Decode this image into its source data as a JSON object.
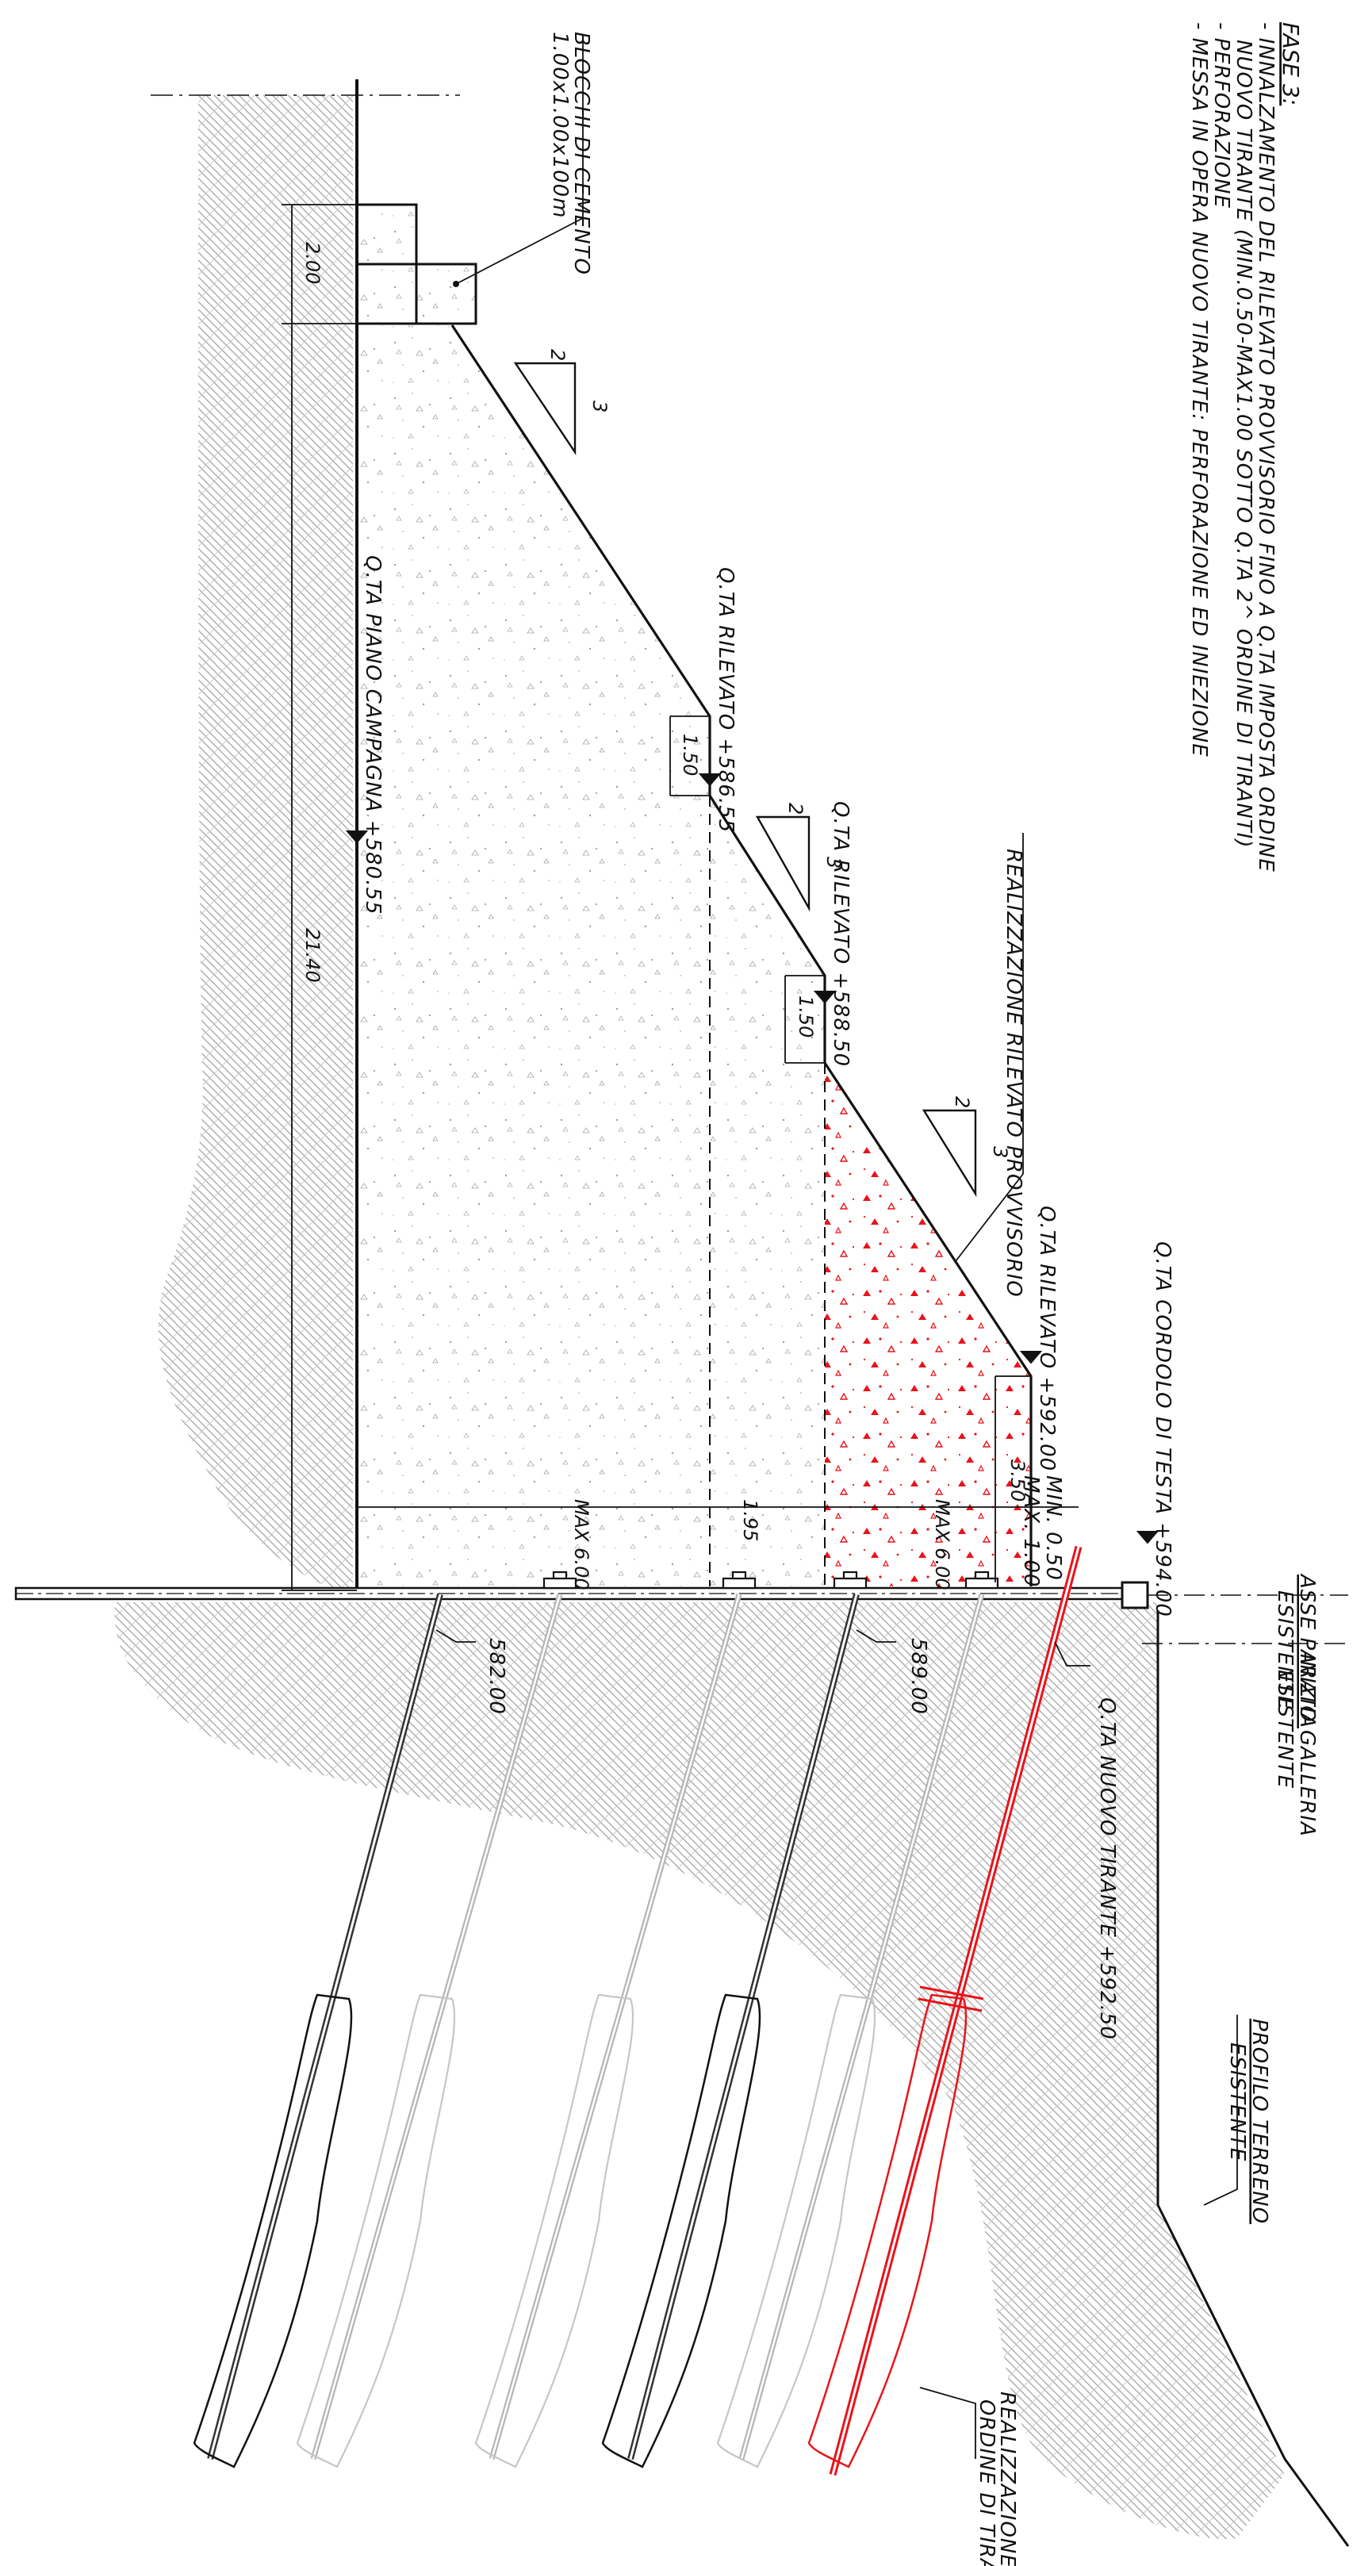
{
  "phase": {
    "title": "FASE 3:",
    "line1": "- INNALZAMENTO DEL RILEVATO PROVVISORIO FINO A Q.TA IMPOSTA ORDINE",
    "line2": "NUOVO TIRANTE (MIN.0.50-MAX1.00 SOTTO Q.TA 2^ ORDINE DI TIRANTI)",
    "line3": "- PERFORAZIONE",
    "line4": "- MESSA IN OPERA NUOVO TIRANTE: PERFORAZIONE ED INIEZIONE"
  },
  "labels": {
    "blocks_1": "BLOCCHI DI CEMENTO",
    "blocks_2": "1.00x1.00x100m",
    "piano_campagna": "Q.TA PIANO CAMPAGNA +580.55",
    "rilevato_1": "Q.TA RILEVATO +586.55",
    "rilevato_2": "Q.TA RILEVATO +588.50",
    "rilevato_3": "Q.TA RILEVATO +592.00",
    "cordolo": "Q.TA CORDOLO DI TESTA +594.00",
    "realizzazione_rilevato": "REALIZZAZIONE RILEVATO PROVVISORIO",
    "asse_paratia_1": "ASSE PARATIA",
    "asse_paratia_2": "ESISTENTE",
    "inizio_galleria_1": "INIZIO GALLERIA",
    "inizio_galleria_2": "ESISTENTE",
    "nuovo_tirante": "Q.TA NUOVO TIRANTE +592.50",
    "profilo_1": "PROFILO TERRENO",
    "profilo_2": "ESISTENTE",
    "realizzazione_tiranti_1": "REALIZZAZIONE NUOVO",
    "realizzazione_tiranti_2": "ORDINE DI TIRANTI",
    "elev_582": "582.00",
    "elev_589": "589.00",
    "min": "MIN. 0.50",
    "max": "MAX. 1.00"
  },
  "dimensions": {
    "d_200": "2.00",
    "d_2140": "21.40",
    "d_150_a": "1.50",
    "d_150_b": "1.50",
    "d_350": "3.50",
    "max600_a": "MAX 6.00",
    "d_195": "1.95",
    "max600_b": "MAX 6.00",
    "slope_v": "2",
    "slope_h": "3"
  },
  "colors": {
    "line": "#111111",
    "highlight": "#e8141b",
    "hatch": "#9a9a9a",
    "fill_speckle": "#bdbdbd"
  }
}
